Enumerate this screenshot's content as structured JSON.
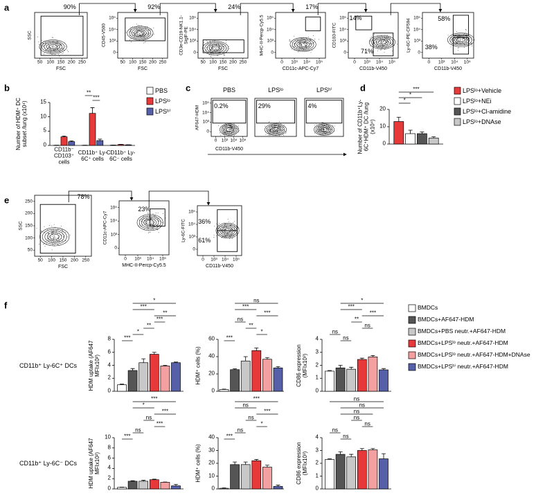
{
  "panel_labels": [
    "a",
    "b",
    "c",
    "d",
    "e",
    "f"
  ],
  "flow": {
    "a": [
      {
        "y": "SSC",
        "x": "FSC",
        "xticks": [
          "50",
          "100",
          "150",
          "200",
          "250"
        ],
        "gates": [
          "90%"
        ]
      },
      {
        "y": "CD45-V500",
        "x": "FSC",
        "xticks": [
          "50",
          "100",
          "150",
          "200",
          "250"
        ],
        "yticks": [
          "0",
          "10³",
          "10⁴",
          "10⁵"
        ],
        "gates": [
          "92%"
        ]
      },
      {
        "y": "CD3e-CD19-NK1.1-SiglF-PE",
        "x": "FSC",
        "xticks": [
          "50",
          "100",
          "150",
          "200",
          "250"
        ],
        "yticks": [
          "0",
          "10³",
          "10⁴",
          "10⁵"
        ],
        "gates": [
          "24%"
        ]
      },
      {
        "y": "MHC-II-Percp-Cy5.5",
        "x": "CD11c-APC-Cy7",
        "xticks": [
          "0",
          "10³",
          "10⁴",
          "10⁵"
        ],
        "yticks": [
          "0",
          "10³",
          "10⁴",
          "10⁵"
        ],
        "gates": [
          "17%"
        ]
      },
      {
        "y": "CD103-FITC",
        "x": "CD11b-V450",
        "xticks": [
          "0",
          "10³",
          "10⁴",
          "10⁵"
        ],
        "yticks": [
          "0",
          "10³",
          "10⁴",
          "10⁵"
        ],
        "gates": [
          "14%",
          "71%"
        ]
      },
      {
        "y": "Ly-6C-PE-CF594",
        "x": "CD11b-V450",
        "xticks": [
          "0",
          "10³",
          "10⁴",
          "10⁵"
        ],
        "yticks": [
          "0",
          "10³",
          "10⁴",
          "10⁵"
        ],
        "gates": [
          "58%",
          "38%"
        ]
      }
    ],
    "c": {
      "titles": [
        "PBS",
        "LPSˡᵒ",
        "LPSʰⁱ"
      ],
      "y": "AF647-HDM",
      "x": "CD11b-V450",
      "xticks": [
        "0",
        "10³",
        "10⁴",
        "10⁵"
      ],
      "yticks": [
        "0",
        "10³",
        "10⁴",
        "10⁵"
      ],
      "gates": [
        "0.2%",
        "29%",
        "4%"
      ]
    },
    "e": [
      {
        "y": "SSC",
        "x": "FSC",
        "xticks": [
          "50",
          "100",
          "150",
          "200",
          "250"
        ],
        "yticks": [
          "50",
          "100",
          "150",
          "200",
          "250"
        ],
        "gates": [
          "78%"
        ]
      },
      {
        "y": "CD11c-APC-Cy7",
        "x": "MHC-II-Percp-Cy5.5",
        "xticks": [
          "0",
          "10³",
          "10⁴",
          "10⁵"
        ],
        "yticks": [
          "0",
          "10³",
          "10⁴",
          "10⁵"
        ],
        "gates": [
          "23%"
        ]
      },
      {
        "y": "Ly-6C-FITC",
        "x": "CD11b-V450",
        "xticks": [
          "0",
          "10³",
          "10⁴",
          "10⁵"
        ],
        "yticks": [
          "0",
          "10³",
          "10⁴",
          "10⁵"
        ],
        "gates": [
          "36%",
          "61%"
        ]
      }
    ]
  },
  "chart_data": [
    {
      "type": "bar",
      "ylabel": "Number of HDM⁺ DC subset /lung (x10⁴)",
      "categories": [
        "CD11b⁻ CD103⁺ cells",
        "CD11b⁺ Ly-6C⁺ cells",
        "CD11b⁺ Ly-6C⁻ cells"
      ],
      "series": [
        {
          "name": "PBS",
          "color": "#ffffff",
          "values": [
            0.05,
            0.05,
            0.1
          ],
          "errors": [
            0.02,
            0.02,
            0.05
          ]
        },
        {
          "name": "LPSˡᵒ",
          "color": "#e8393a",
          "values": [
            3.0,
            11.2,
            0.3
          ],
          "errors": [
            0.3,
            2.0,
            0.1
          ]
        },
        {
          "name": "LPSʰⁱ",
          "color": "#5560a8",
          "values": [
            1.3,
            1.7,
            0.2
          ],
          "errors": [
            0.3,
            0.5,
            0.05
          ]
        }
      ],
      "ylim": [
        0,
        15
      ],
      "yticks": [
        0,
        5,
        10,
        15
      ],
      "comparisons": [
        {
          "label": "**",
          "category": 1,
          "between": [
            0,
            1
          ]
        },
        {
          "label": "***",
          "category": 1,
          "between": [
            1,
            2
          ]
        }
      ]
    },
    {
      "type": "bar",
      "ylabel": "Number of CD11b⁺Ly-6C⁺HDM⁺ DC /lung (x10⁴)",
      "series": [
        {
          "name": "LPSˡᵒ+Vehicle",
          "color": "#e8393a",
          "values": [
            13
          ],
          "errors": [
            2.5
          ]
        },
        {
          "name": "LPSˡᵒ+NEi",
          "color": "#ffffff",
          "values": [
            6
          ],
          "errors": [
            2
          ]
        },
        {
          "name": "LPSˡᵒ+Cl-amidine",
          "color": "#555555",
          "values": [
            6
          ],
          "errors": [
            1
          ]
        },
        {
          "name": "LPSˡᵒ+DNAse",
          "color": "#c8c8c8",
          "values": [
            3.5
          ],
          "errors": [
            0.7
          ]
        }
      ],
      "ylim": [
        0,
        20
      ],
      "yticks": [
        0,
        10,
        20
      ],
      "comparisons": [
        {
          "label": "***",
          "between": [
            0,
            3
          ]
        },
        {
          "label": "*",
          "between": [
            0,
            2
          ]
        },
        {
          "label": "*",
          "between": [
            0,
            1
          ]
        }
      ]
    },
    {
      "type": "bar",
      "legend": [
        {
          "name": "BMDCs",
          "color": "#ffffff"
        },
        {
          "name": "BMDCs+AF647-HDM",
          "color": "#555555"
        },
        {
          "name": "BMDCs+PBS neutr.+AF647-HDM",
          "color": "#c8c8c8"
        },
        {
          "name": "BMDCs+LPSˡᵒ neutr.+AF647-HDM",
          "color": "#e8393a"
        },
        {
          "name": "BMDCs+LPSˡᵒ neutr.+AF647-HDM+DNAse",
          "color": "#f4a0a0"
        },
        {
          "name": "BMDCs+LPSʰⁱ neutr.+AF647-HDM",
          "color": "#5560a8"
        }
      ],
      "row_labels": [
        "CD11b⁺ Ly-6C⁺ DCs",
        "CD11b⁺ Ly-6C⁻ DCs"
      ],
      "panels": [
        {
          "ylabel": "HDM uptake (AF647 MFIx10²)",
          "ylim": [
            0,
            8
          ],
          "yticks": [
            0,
            2,
            4,
            6,
            8
          ],
          "values": [
            1.0,
            3.2,
            4.4,
            5.7,
            3.9,
            4.4
          ],
          "errors": [
            0.1,
            0.3,
            0.6,
            0.3,
            0.1,
            0.1
          ],
          "comparisons": [
            {
              "label": "*",
              "between": [
                1,
                5
              ]
            },
            {
              "label": "***",
              "between": [
                1,
                3
              ]
            },
            {
              "label": "**",
              "between": [
                3,
                5
              ]
            },
            {
              "label": "***",
              "between": [
                3,
                4
              ]
            },
            {
              "label": "**",
              "between": [
                2,
                3
              ]
            },
            {
              "label": "*",
              "between": [
                1,
                2
              ]
            },
            {
              "label": "***",
              "between": [
                0,
                1
              ]
            }
          ]
        },
        {
          "ylabel": "HDM⁺ cells (%)",
          "ylim": [
            0,
            60
          ],
          "yticks": [
            0,
            20,
            40,
            60
          ],
          "values": [
            2,
            25,
            35,
            47,
            37,
            27
          ],
          "errors": [
            0.5,
            1,
            5,
            3,
            2,
            1.5
          ],
          "comparisons": [
            {
              "label": "ns",
              "between": [
                1,
                5
              ]
            },
            {
              "label": "***",
              "between": [
                1,
                3
              ]
            },
            {
              "label": "***",
              "between": [
                3,
                5
              ]
            },
            {
              "label": "ns",
              "between": [
                1,
                2
              ]
            },
            {
              "label": "**",
              "between": [
                2,
                3
              ]
            },
            {
              "label": "*",
              "between": [
                3,
                4
              ]
            },
            {
              "label": "***",
              "between": [
                0,
                1
              ]
            }
          ]
        },
        {
          "ylabel": "CD86 expression (MFIx10³)",
          "ylim": [
            0,
            4
          ],
          "yticks": [
            0,
            1,
            2,
            3,
            4
          ],
          "values": [
            1.55,
            1.8,
            1.7,
            2.45,
            2.65,
            1.65
          ],
          "errors": [
            0.05,
            0.2,
            0.15,
            0.1,
            0.1,
            0.1
          ],
          "comparisons": [
            {
              "label": "*",
              "between": [
                1,
                5
              ]
            },
            {
              "label": "***",
              "between": [
                1,
                3
              ]
            },
            {
              "label": "***",
              "between": [
                3,
                5
              ]
            },
            {
              "label": "**",
              "between": [
                2,
                3
              ]
            },
            {
              "label": "ns",
              "between": [
                3,
                4
              ]
            },
            {
              "label": "ns",
              "between": [
                0,
                1
              ]
            },
            {
              "label": "ns",
              "between": [
                1,
                2
              ]
            }
          ]
        },
        {
          "ylabel": "HDM uptake (AF647 MFIx10²)",
          "ylim": [
            0,
            10
          ],
          "yticks": [
            0,
            2,
            4,
            6,
            8,
            10
          ],
          "values": [
            0.3,
            1.5,
            1.5,
            1.8,
            1.3,
            0.6
          ],
          "errors": [
            0.05,
            0.1,
            0.2,
            0.1,
            0.05,
            0.3
          ],
          "comparisons": [
            {
              "label": "***",
              "between": [
                1,
                5
              ]
            },
            {
              "label": "*",
              "between": [
                1,
                3
              ]
            },
            {
              "label": "***",
              "between": [
                3,
                5
              ]
            },
            {
              "label": "ns",
              "between": [
                2,
                3
              ]
            },
            {
              "label": "***",
              "between": [
                3,
                4
              ]
            },
            {
              "label": "ns",
              "between": [
                1,
                2
              ]
            },
            {
              "label": "***",
              "between": [
                0,
                1
              ]
            }
          ]
        },
        {
          "ylabel": "HDM⁺ cells (%)",
          "ylim": [
            0,
            40
          ],
          "yticks": [
            0,
            10,
            20,
            30,
            40
          ],
          "values": [
            0.5,
            19,
            19,
            22,
            17,
            2
          ],
          "errors": [
            0.3,
            2,
            2,
            1,
            1.5,
            1
          ],
          "comparisons": [
            {
              "label": "***",
              "between": [
                1,
                5
              ]
            },
            {
              "label": "ns",
              "between": [
                1,
                3
              ]
            },
            {
              "label": "***",
              "between": [
                3,
                5
              ]
            },
            {
              "label": "ns",
              "between": [
                2,
                3
              ]
            },
            {
              "label": "*",
              "between": [
                3,
                4
              ]
            },
            {
              "label": "ns",
              "between": [
                1,
                2
              ]
            },
            {
              "label": "***",
              "between": [
                0,
                1
              ]
            }
          ]
        },
        {
          "ylabel": "CD86 expression (MFIx10³)",
          "ylim": [
            0,
            4
          ],
          "yticks": [
            0,
            1,
            2,
            3,
            4
          ],
          "values": [
            2.3,
            2.7,
            2.5,
            3.0,
            3.05,
            2.35
          ],
          "errors": [
            0.05,
            0.2,
            0.2,
            0.15,
            0.1,
            0.4
          ],
          "comparisons": [
            {
              "label": "ns",
              "between": [
                0,
                5
              ]
            },
            {
              "label": "ns",
              "between": [
                1,
                5
              ]
            },
            {
              "label": "ns",
              "between": [
                1,
                4
              ]
            },
            {
              "label": "ns",
              "between": [
                2,
                3
              ]
            },
            {
              "label": "ns",
              "between": [
                3,
                4
              ]
            },
            {
              "label": "ns",
              "between": [
                0,
                1
              ]
            },
            {
              "label": "ns",
              "between": [
                1,
                2
              ]
            }
          ]
        }
      ]
    }
  ]
}
